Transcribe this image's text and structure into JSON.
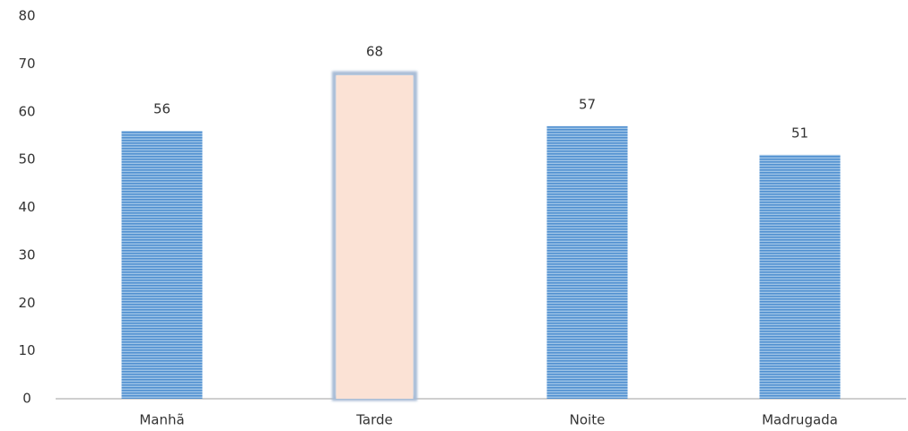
{
  "chart_data": {
    "type": "bar",
    "categories": [
      "Manhã",
      "Tarde",
      "Noite",
      "Madrugada"
    ],
    "values": [
      56,
      68,
      57,
      51
    ],
    "colors": [
      "#5b9bd5",
      "#fbe2d5",
      "#5b9bd5",
      "#5b9bd5"
    ],
    "ylim": [
      0,
      80
    ],
    "yticks": [
      0,
      10,
      20,
      30,
      40,
      50,
      60,
      70,
      80
    ],
    "grid": false
  }
}
